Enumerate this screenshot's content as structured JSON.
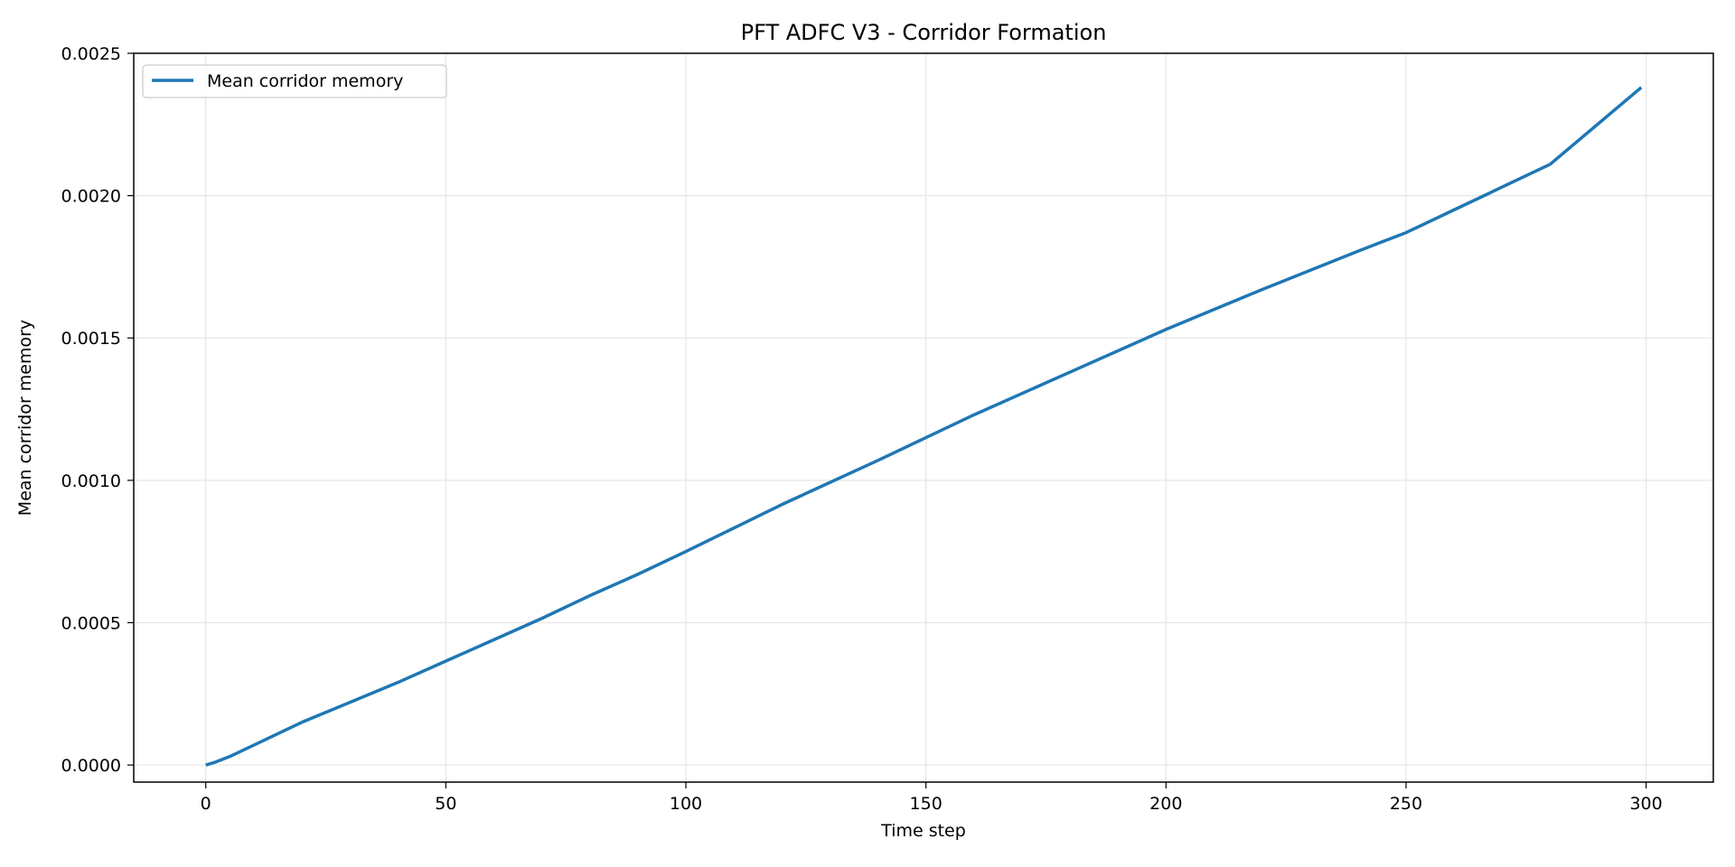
{
  "chart_data": {
    "type": "line",
    "title": "PFT ADFC V3 - Corridor Formation",
    "xlabel": "Time step",
    "ylabel": "Mean corridor memory",
    "xlim": [
      -15,
      314
    ],
    "ylim": [
      -6e-05,
      0.0025
    ],
    "x_ticks": [
      0,
      50,
      100,
      150,
      200,
      250,
      300
    ],
    "x_tick_labels": [
      "0",
      "50",
      "100",
      "150",
      "200",
      "250",
      "300"
    ],
    "y_ticks": [
      0.0,
      0.0005,
      0.001,
      0.0015,
      0.002,
      0.0025
    ],
    "y_tick_labels": [
      "0.0000",
      "0.0005",
      "0.0010",
      "0.0015",
      "0.0020",
      "0.0025"
    ],
    "grid": true,
    "legend_position": "top-left",
    "series": [
      {
        "name": "Mean corridor memory",
        "color": "#1f77b4",
        "x": [
          0,
          2,
          5,
          10,
          15,
          20,
          25,
          30,
          40,
          50,
          60,
          70,
          80,
          90,
          100,
          120,
          140,
          150,
          160,
          180,
          200,
          220,
          240,
          250,
          260,
          280,
          299
        ],
        "y": [
          0.0,
          1e-05,
          3e-05,
          7e-05,
          0.00011,
          0.00015,
          0.000185,
          0.00022,
          0.00029,
          0.000365,
          0.00044,
          0.000515,
          0.000595,
          0.00067,
          0.00075,
          0.000915,
          0.00107,
          0.00115,
          0.00123,
          0.00138,
          0.00153,
          0.00167,
          0.001805,
          0.00187,
          0.00195,
          0.00211,
          0.00238
        ]
      }
    ]
  }
}
